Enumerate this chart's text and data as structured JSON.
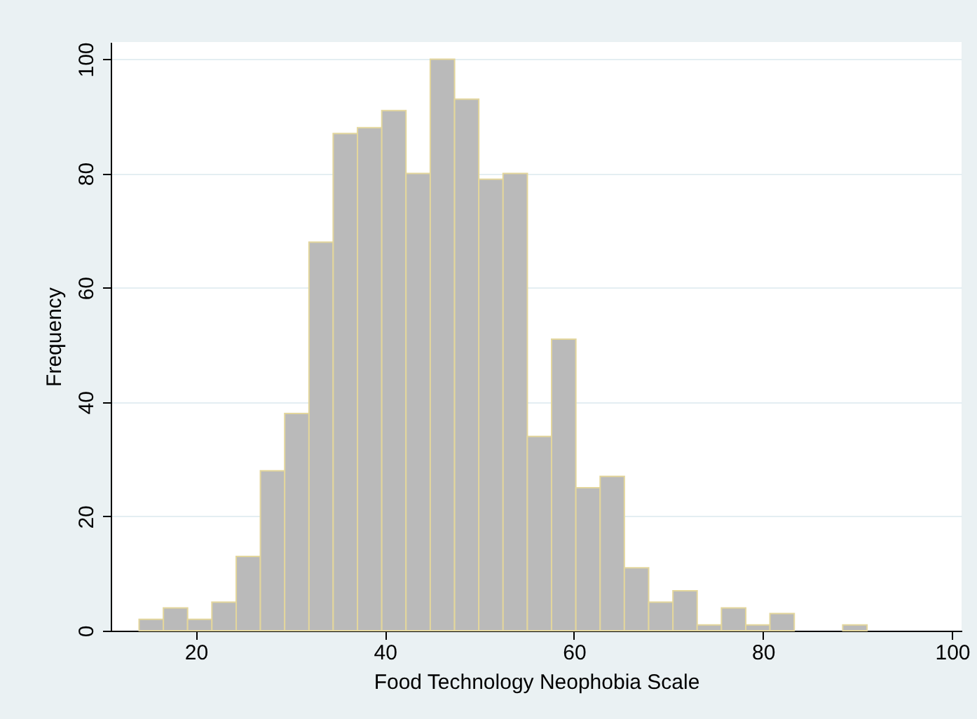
{
  "chart_data": {
    "type": "histogram",
    "xlabel": "Food Technology Neophobia Scale",
    "ylabel": "Frequency",
    "bins": [
      14,
      16.57,
      19.13,
      21.7,
      24.27,
      26.83,
      29.4,
      31.97,
      34.53,
      37.1,
      39.67,
      42.23,
      44.8,
      47.37,
      49.93,
      52.5,
      55.07,
      57.63,
      60.2,
      62.77,
      65.33,
      67.9,
      70.47,
      73.03,
      75.6,
      78.17,
      80.73,
      83.3,
      85.87,
      88.43,
      91
    ],
    "values": [
      2,
      4,
      2,
      5,
      13,
      28,
      38,
      68,
      87,
      88,
      91,
      80,
      100,
      93,
      79,
      80,
      34,
      51,
      25,
      27,
      11,
      5,
      7,
      1,
      4,
      1,
      3,
      0,
      0,
      1
    ],
    "color": "#bababa",
    "xlim": [
      11,
      101
    ],
    "xticks": [
      20,
      40,
      60,
      80,
      100
    ],
    "ylim": [
      0,
      103
    ],
    "yticks": [
      0,
      20,
      40,
      60,
      80,
      100
    ],
    "grid": "y"
  }
}
